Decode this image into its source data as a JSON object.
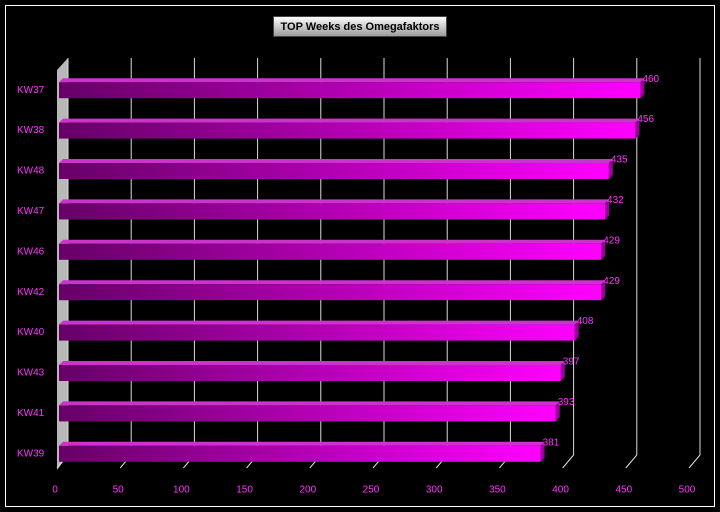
{
  "chart_data": {
    "type": "bar",
    "orientation": "horizontal",
    "title": "TOP Weeks des Omegafaktors",
    "categories": [
      "KW37",
      "KW38",
      "KW48",
      "KW47",
      "KW46",
      "KW42",
      "KW40",
      "KW43",
      "KW41",
      "KW39"
    ],
    "values": [
      460,
      456,
      435,
      432,
      429,
      429,
      408,
      397,
      393,
      381
    ],
    "color": "#ff00ff",
    "xlim": [
      0,
      500
    ],
    "xticks": [
      0,
      50,
      100,
      150,
      200,
      250,
      300,
      350,
      400,
      450,
      500
    ],
    "grid": true
  }
}
